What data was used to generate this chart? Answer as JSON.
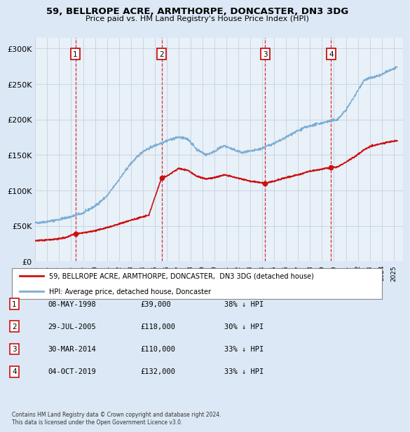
{
  "title": "59, BELLROPE ACRE, ARMTHORPE, DONCASTER, DN3 3DG",
  "subtitle": "Price paid vs. HM Land Registry's House Price Index (HPI)",
  "ylabel_ticks": [
    "£0",
    "£50K",
    "£100K",
    "£150K",
    "£200K",
    "£250K",
    "£300K"
  ],
  "ytick_values": [
    0,
    50000,
    100000,
    150000,
    200000,
    250000,
    300000
  ],
  "ylim": [
    0,
    315000
  ],
  "xlim_start": 1995.0,
  "xlim_end": 2025.8,
  "background_color": "#dce8f5",
  "plot_background": "#e8f0f8",
  "hpi_color": "#7aadd4",
  "price_color": "#cc1111",
  "sale_points": [
    {
      "year": 1998.356,
      "price": 39000,
      "label": "1"
    },
    {
      "year": 2005.572,
      "price": 118000,
      "label": "2"
    },
    {
      "year": 2014.247,
      "price": 110000,
      "label": "3"
    },
    {
      "year": 2019.753,
      "price": 132000,
      "label": "4"
    }
  ],
  "vline_color": "#cc1111",
  "legend_property_label": "59, BELLROPE ACRE, ARMTHORPE, DONCASTER,  DN3 3DG (detached house)",
  "legend_hpi_label": "HPI: Average price, detached house, Doncaster",
  "table_rows": [
    {
      "num": "1",
      "date": "08-MAY-1998",
      "price": "£39,000",
      "pct": "38% ↓ HPI"
    },
    {
      "num": "2",
      "date": "29-JUL-2005",
      "price": "£118,000",
      "pct": "30% ↓ HPI"
    },
    {
      "num": "3",
      "date": "30-MAR-2014",
      "price": "£110,000",
      "pct": "33% ↓ HPI"
    },
    {
      "num": "4",
      "date": "04-OCT-2019",
      "price": "£132,000",
      "pct": "33% ↓ HPI"
    }
  ],
  "footer": "Contains HM Land Registry data © Crown copyright and database right 2024.\nThis data is licensed under the Open Government Licence v3.0.",
  "xtick_years": [
    1995,
    1996,
    1997,
    1998,
    1999,
    2000,
    2001,
    2002,
    2003,
    2004,
    2005,
    2006,
    2007,
    2008,
    2009,
    2010,
    2011,
    2012,
    2013,
    2014,
    2015,
    2016,
    2017,
    2018,
    2019,
    2020,
    2021,
    2022,
    2023,
    2024,
    2025
  ]
}
